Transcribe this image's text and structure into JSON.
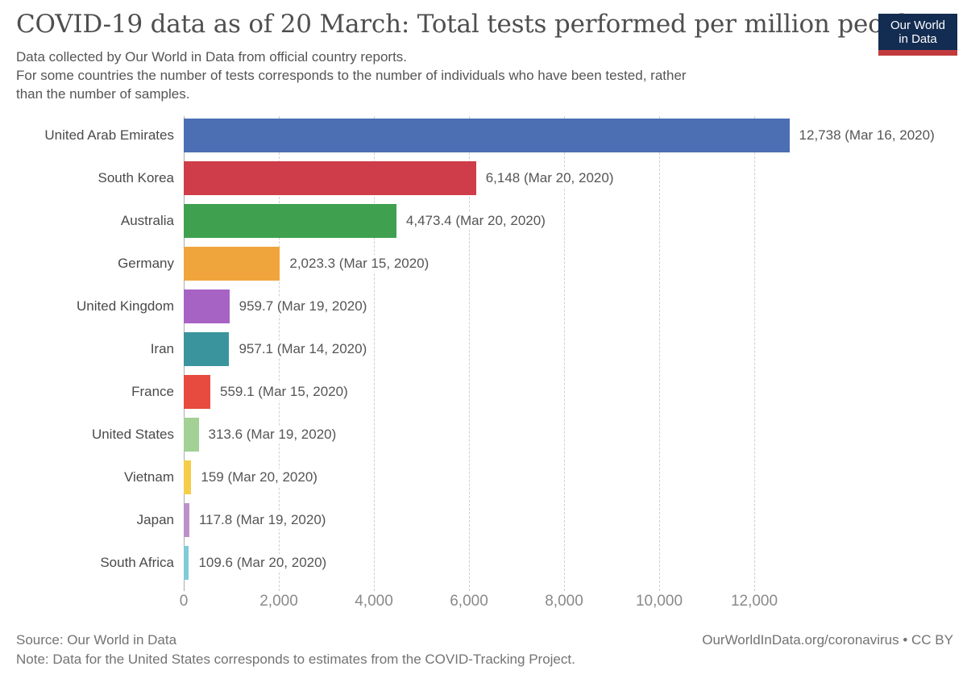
{
  "header": {
    "title": "COVID-19 data as of 20 March: Total tests performed per million people",
    "subtitle_lines": [
      "Data collected by Our World in Data from official country reports.",
      "For some countries the number of tests corresponds to the number of individuals who have been tested, rather",
      "than the number of samples."
    ],
    "logo": {
      "line1": "Our World",
      "line2": "in Data",
      "bg_color": "#132c52",
      "stripe_color": "#c23b3c",
      "text_color": "#ffffff"
    }
  },
  "chart_data": {
    "type": "bar",
    "orientation": "horizontal",
    "title": "COVID-19 data as of 20 March: Total tests performed per million people",
    "categories": [
      "United Arab Emirates",
      "South Korea",
      "Australia",
      "Germany",
      "United Kingdom",
      "Iran",
      "France",
      "United States",
      "Vietnam",
      "Japan",
      "South Africa"
    ],
    "values": [
      12738,
      6148,
      4473.4,
      2023.3,
      959.7,
      957.1,
      559.1,
      313.6,
      159,
      117.8,
      109.6
    ],
    "value_labels": [
      "12,738 (Mar 16, 2020)",
      "6,148 (Mar 20, 2020)",
      "4,473.4 (Mar 20, 2020)",
      "2,023.3 (Mar 15, 2020)",
      "959.7 (Mar 19, 2020)",
      "957.1 (Mar 14, 2020)",
      "559.1 (Mar 15, 2020)",
      "313.6 (Mar 19, 2020)",
      "159 (Mar 20, 2020)",
      "117.8 (Mar 19, 2020)",
      "109.6 (Mar 20, 2020)"
    ],
    "bar_colors": [
      "#4c6fb3",
      "#ce3d49",
      "#3fa04f",
      "#f0a53c",
      "#a763c4",
      "#3a949e",
      "#e74a3e",
      "#a2d095",
      "#f5cd49",
      "#bc91c8",
      "#81cad8"
    ],
    "x_ticks": [
      0,
      2000,
      4000,
      6000,
      8000,
      10000,
      12000
    ],
    "x_tick_labels": [
      "0",
      "2,000",
      "4,000",
      "6,000",
      "8,000",
      "10,000",
      "12,000"
    ],
    "xlim": [
      0,
      16270
    ],
    "grid": "vertical dashed gridlines at each tick, solid line at zero",
    "legend": "none",
    "xlabel": "",
    "ylabel": ""
  },
  "footer": {
    "source": "Source: Our World in Data",
    "note": "Note: Data for the United States corresponds to estimates from the COVID-Tracking Project.",
    "credit": "OurWorldInData.org/coronavirus • CC BY"
  }
}
